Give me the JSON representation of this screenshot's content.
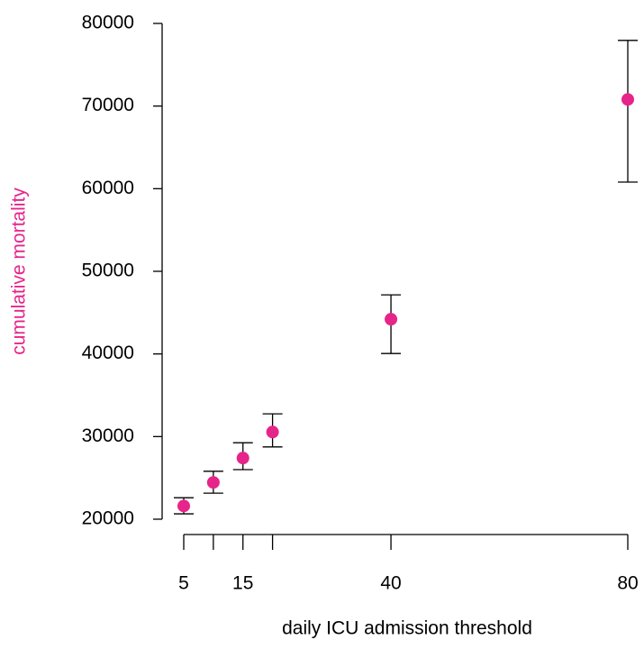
{
  "chart_data": {
    "type": "errorbar",
    "xlabel": "daily ICU admission threshold",
    "ylabel": "cumulative mortality",
    "series": [
      {
        "name": "cumulative mortality",
        "color": "#e7248a",
        "x": [
          5,
          10,
          15,
          20,
          40,
          80
        ],
        "values": [
          21600,
          24450,
          27400,
          30550,
          44200,
          70800
        ],
        "lower": [
          20650,
          23150,
          26000,
          28750,
          40050,
          60800
        ],
        "upper": [
          22600,
          25800,
          29250,
          32750,
          47150,
          77950
        ]
      }
    ],
    "xlim": [
      5,
      80
    ],
    "xticks": [
      5,
      {
        "value": 10,
        "label": null
      },
      15,
      {
        "value": 20,
        "label": null
      },
      40,
      80
    ],
    "ylim": [
      20000,
      80000
    ],
    "yticks": [
      20000,
      30000,
      40000,
      50000,
      60000,
      70000,
      80000
    ]
  }
}
